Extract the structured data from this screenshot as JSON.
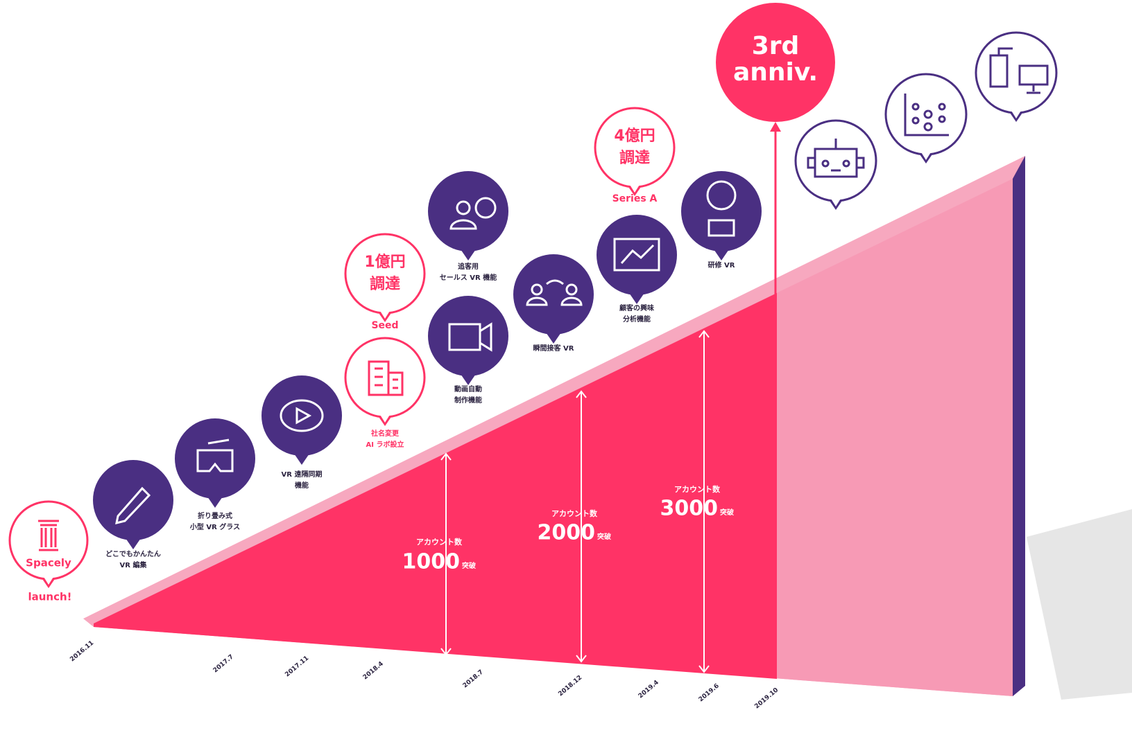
{
  "launch": {
    "name": "Spacely",
    "caption": "launch!"
  },
  "features": [
    {
      "lines": [
        "どこでもかんたん",
        "VR 編集"
      ]
    },
    {
      "lines": [
        "折り畳み式",
        "小型 VR グラス"
      ]
    },
    {
      "lines": [
        "VR 遠隔同期",
        "機能"
      ]
    },
    {
      "lines": [
        "追客用",
        "セールス VR 機能"
      ]
    },
    {
      "lines": [
        "動画自動",
        "制作機能"
      ]
    },
    {
      "lines": [
        "瞬間接客 VR"
      ]
    },
    {
      "lines": [
        "顧客の興味",
        "分析機能"
      ]
    },
    {
      "lines": [
        "研修 VR"
      ]
    }
  ],
  "rebrand": {
    "lines": [
      "社名変更",
      "AI ラボ設立"
    ]
  },
  "funding": [
    {
      "amount": [
        "1億円",
        "調達"
      ],
      "round": "Seed"
    },
    {
      "amount": [
        "4億円",
        "調達"
      ],
      "round": "Series A"
    }
  ],
  "anniversary": [
    "3rd",
    "anniv."
  ],
  "accounts": [
    {
      "label": "アカウント数",
      "count": 1000,
      "suffix": "突破"
    },
    {
      "label": "アカウント数",
      "count": 2000,
      "suffix": "突破"
    },
    {
      "label": "アカウント数",
      "count": 3000,
      "suffix": "突破"
    }
  ],
  "dates": [
    "2016.11",
    "2017.7",
    "2017.11",
    "2018.4",
    "2018.7",
    "2018.12",
    "2019.4",
    "2019.6",
    "2019.10"
  ]
}
